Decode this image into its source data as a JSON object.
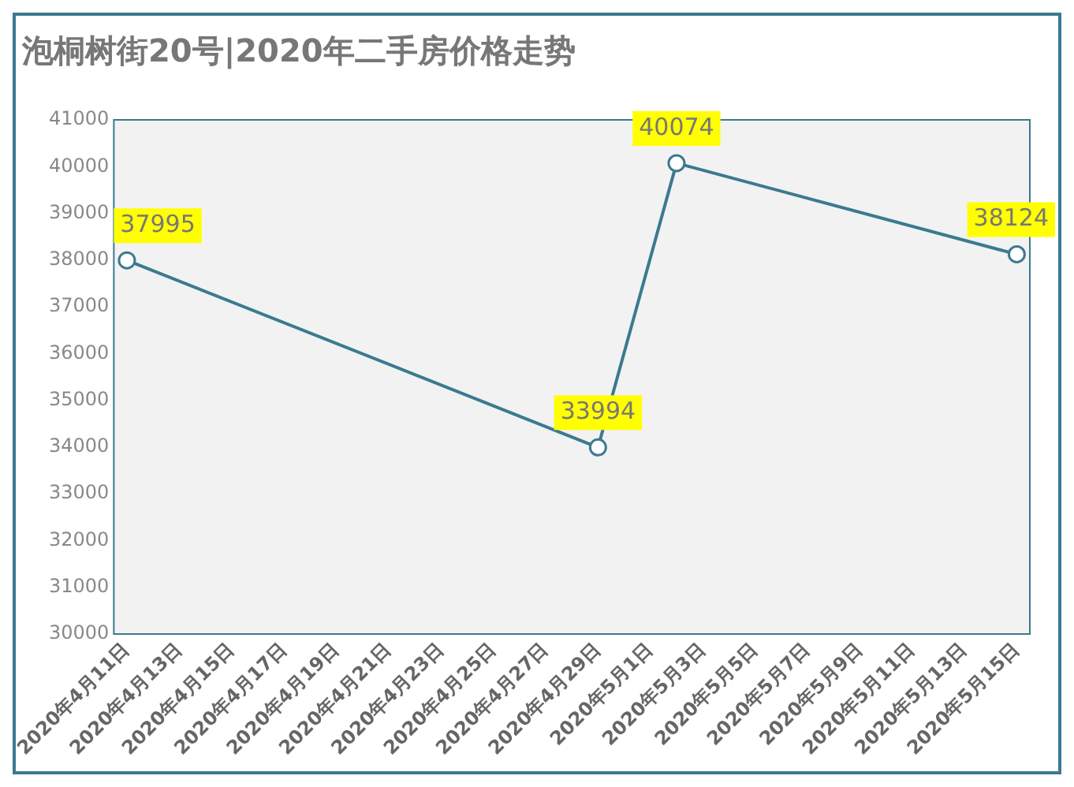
{
  "chart_data": {
    "type": "line",
    "title": "泡桐树街20号|2020年二手房价格走势",
    "x": [
      "2020-04-11",
      "2020-04-29",
      "2020-05-02",
      "2020-05-15"
    ],
    "series": [
      {
        "color": "#3b7a8f",
        "values": [
          37995,
          33994,
          40074,
          38124
        ]
      }
    ],
    "xlim": [
      "2020-04-10T12:00",
      "2020-05-15T12:00"
    ],
    "xticks": [
      {
        "value": "2020-04-11",
        "label": "2020年4月11日"
      },
      {
        "value": "2020-04-13",
        "label": "2020年4月13日"
      },
      {
        "value": "2020-04-15",
        "label": "2020年4月15日"
      },
      {
        "value": "2020-04-17",
        "label": "2020年4月17日"
      },
      {
        "value": "2020-04-19",
        "label": "2020年4月19日"
      },
      {
        "value": "2020-04-21",
        "label": "2020年4月21日"
      },
      {
        "value": "2020-04-23",
        "label": "2020年4月23日"
      },
      {
        "value": "2020-04-25",
        "label": "2020年4月25日"
      },
      {
        "value": "2020-04-27",
        "label": "2020年4月27日"
      },
      {
        "value": "2020-04-29",
        "label": "2020年4月29日"
      },
      {
        "value": "2020-05-01",
        "label": "2020年5月1日"
      },
      {
        "value": "2020-05-03",
        "label": "2020年5月3日"
      },
      {
        "value": "2020-05-05",
        "label": "2020年5月5日"
      },
      {
        "value": "2020-05-07",
        "label": "2020年5月7日"
      },
      {
        "value": "2020-05-09",
        "label": "2020年5月9日"
      },
      {
        "value": "2020-05-11",
        "label": "2020年5月11日"
      },
      {
        "value": "2020-05-13",
        "label": "2020年5月13日"
      },
      {
        "value": "2020-05-15",
        "label": "2020年5月15日"
      }
    ],
    "ylim": [
      30000,
      41000
    ],
    "yticks": [
      30000,
      31000,
      32000,
      33000,
      34000,
      35000,
      36000,
      37000,
      38000,
      39000,
      40000,
      41000
    ],
    "marker": "circle",
    "line_style": "solid",
    "grid": false,
    "legend": false,
    "data_labels": true
  }
}
